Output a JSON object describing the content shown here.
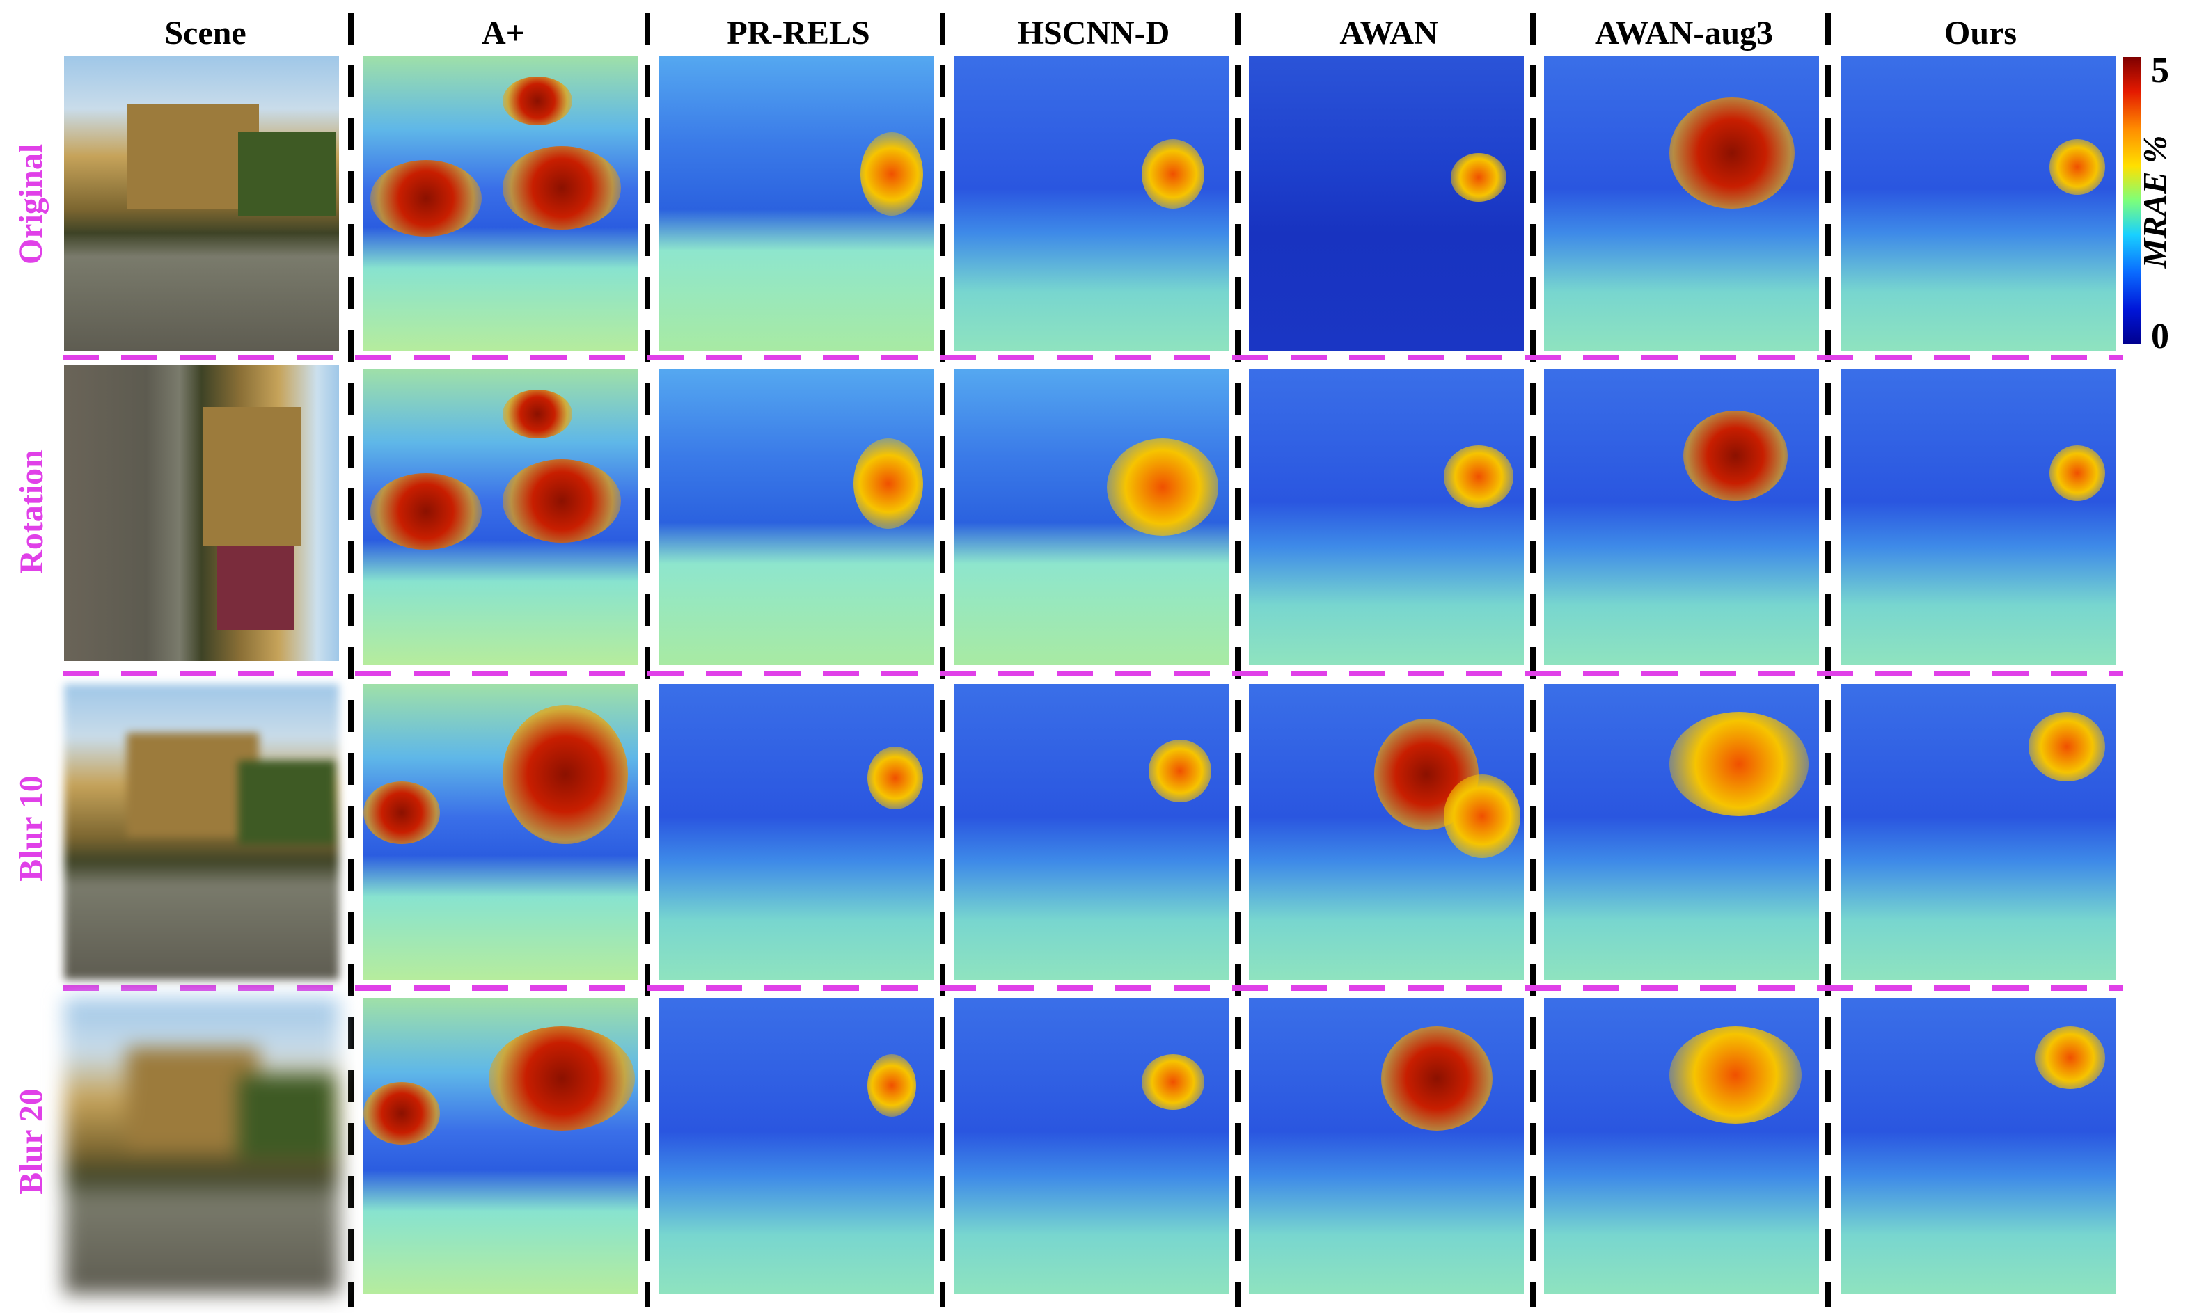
{
  "columns": [
    "Scene",
    "A+",
    "PR-RELS",
    "HSCNN-D",
    "AWAN",
    "AWAN-aug3",
    "Ours"
  ],
  "rows": [
    "Original",
    "Rotation",
    "Blur 10",
    "Blur 20"
  ],
  "colorbar": {
    "max": "5",
    "min": "0",
    "label": "MRAE %"
  },
  "colors": {
    "row_label": "#e040e8",
    "row_separator": "#e040e8",
    "column_separator": "#000000"
  }
}
